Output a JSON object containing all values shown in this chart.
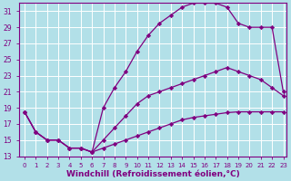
{
  "background_color": "#b2e0e8",
  "grid_color": "#ffffff",
  "line_color": "#800080",
  "marker": "D",
  "markersize": 2.2,
  "linewidth": 0.9,
  "xlabel": "Windchill (Refroidissement éolien,°C)",
  "xlabel_fontsize": 6.5,
  "xtick_fontsize": 5.0,
  "ytick_fontsize": 5.5,
  "xlim": [
    -0.5,
    23.3
  ],
  "ylim": [
    13,
    32
  ],
  "yticks": [
    13,
    15,
    17,
    19,
    21,
    23,
    25,
    27,
    29,
    31
  ],
  "xticks": [
    0,
    1,
    2,
    3,
    4,
    5,
    6,
    7,
    8,
    9,
    10,
    11,
    12,
    13,
    14,
    15,
    16,
    17,
    18,
    19,
    20,
    21,
    22,
    23
  ],
  "line1_x": [
    0,
    1,
    2,
    3,
    4,
    5,
    6,
    7,
    8,
    9,
    10,
    11,
    12,
    13,
    14,
    15,
    16,
    17,
    18,
    19,
    20,
    21,
    22,
    23
  ],
  "line1_y": [
    18.5,
    16.0,
    15.0,
    15.0,
    14.0,
    14.0,
    13.5,
    14.0,
    14.5,
    15.0,
    15.5,
    16.0,
    16.5,
    17.0,
    17.5,
    17.8,
    18.0,
    18.2,
    18.4,
    18.5,
    18.5,
    18.5,
    18.5,
    18.5
  ],
  "line2_x": [
    0,
    1,
    2,
    3,
    4,
    5,
    6,
    7,
    8,
    9,
    10,
    11,
    12,
    13,
    14,
    15,
    16,
    17,
    18,
    19,
    20,
    21,
    22,
    23
  ],
  "line2_y": [
    18.5,
    16.0,
    15.0,
    15.0,
    14.0,
    14.0,
    13.5,
    15.0,
    16.5,
    18.0,
    19.5,
    20.5,
    21.0,
    21.5,
    22.0,
    22.5,
    23.0,
    23.5,
    24.0,
    23.5,
    23.0,
    22.5,
    21.5,
    20.5
  ],
  "line3_x": [
    0,
    1,
    2,
    3,
    4,
    5,
    6,
    7,
    8,
    9,
    10,
    11,
    12,
    13,
    14,
    15,
    16,
    17,
    18,
    19,
    20,
    21,
    22,
    23
  ],
  "line3_y": [
    18.5,
    16.0,
    15.0,
    15.0,
    14.0,
    14.0,
    13.5,
    19.0,
    21.5,
    23.5,
    26.0,
    28.0,
    29.5,
    30.5,
    31.5,
    32.0,
    32.0,
    32.0,
    31.5,
    29.5,
    29.0,
    29.0,
    29.0,
    21.0
  ]
}
